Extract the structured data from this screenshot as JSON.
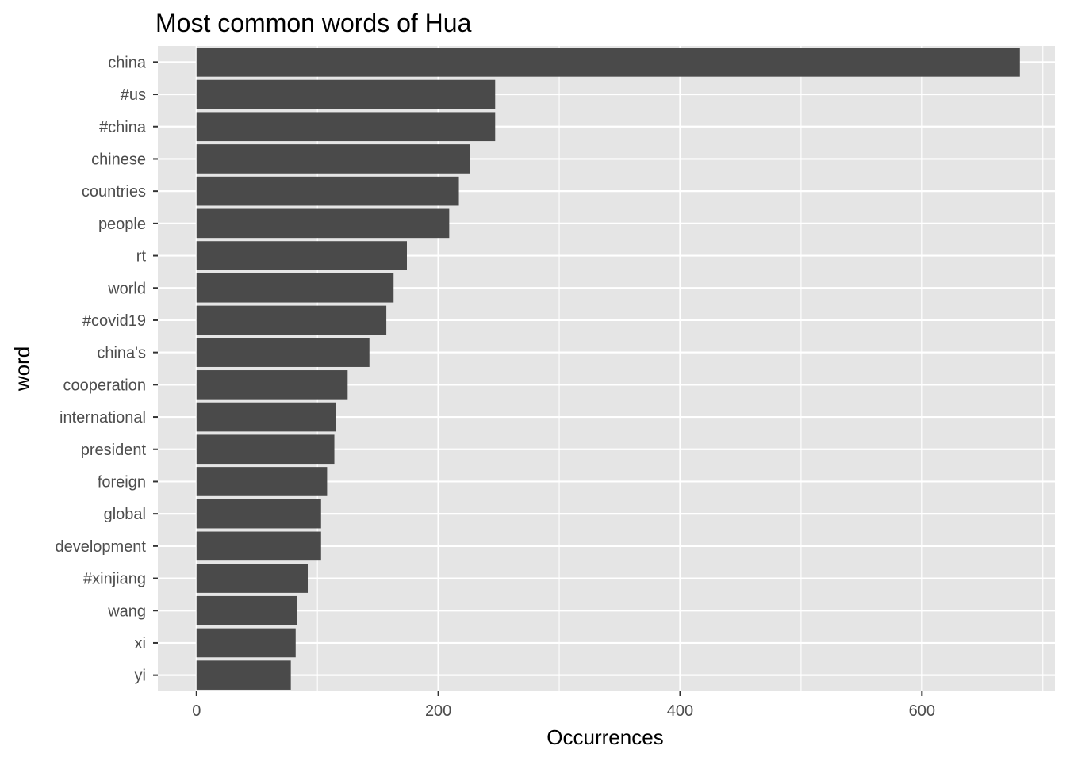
{
  "chart_data": {
    "type": "bar",
    "orientation": "horizontal",
    "title": "Most common words of Hua",
    "xlabel": "Occurrences",
    "ylabel": "word",
    "categories": [
      "china",
      "#us",
      "#china",
      "chinese",
      "countries",
      "people",
      "rt",
      "world",
      "#covid19",
      "china's",
      "cooperation",
      "international",
      "president",
      "foreign",
      "global",
      "development",
      "#xinjiang",
      "wang",
      "xi",
      "yi"
    ],
    "values": [
      681,
      247,
      247,
      226,
      217,
      209,
      174,
      163,
      157,
      143,
      125,
      115,
      114,
      108,
      103,
      103,
      92,
      83,
      82,
      78
    ],
    "xlim": [
      -32,
      710
    ],
    "x_ticks": [
      "0",
      "200",
      "400",
      "600"
    ],
    "x_tick_values": [
      0,
      200,
      400,
      600
    ],
    "x_minor_tick_values": [
      100,
      300,
      500,
      700
    ],
    "grid": true,
    "legend": "none",
    "colors": {
      "bar": "#4a4a4a",
      "panel_background": "#e5e5e5",
      "grid_line": "#ffffff",
      "tick_mark": "#333333"
    }
  }
}
